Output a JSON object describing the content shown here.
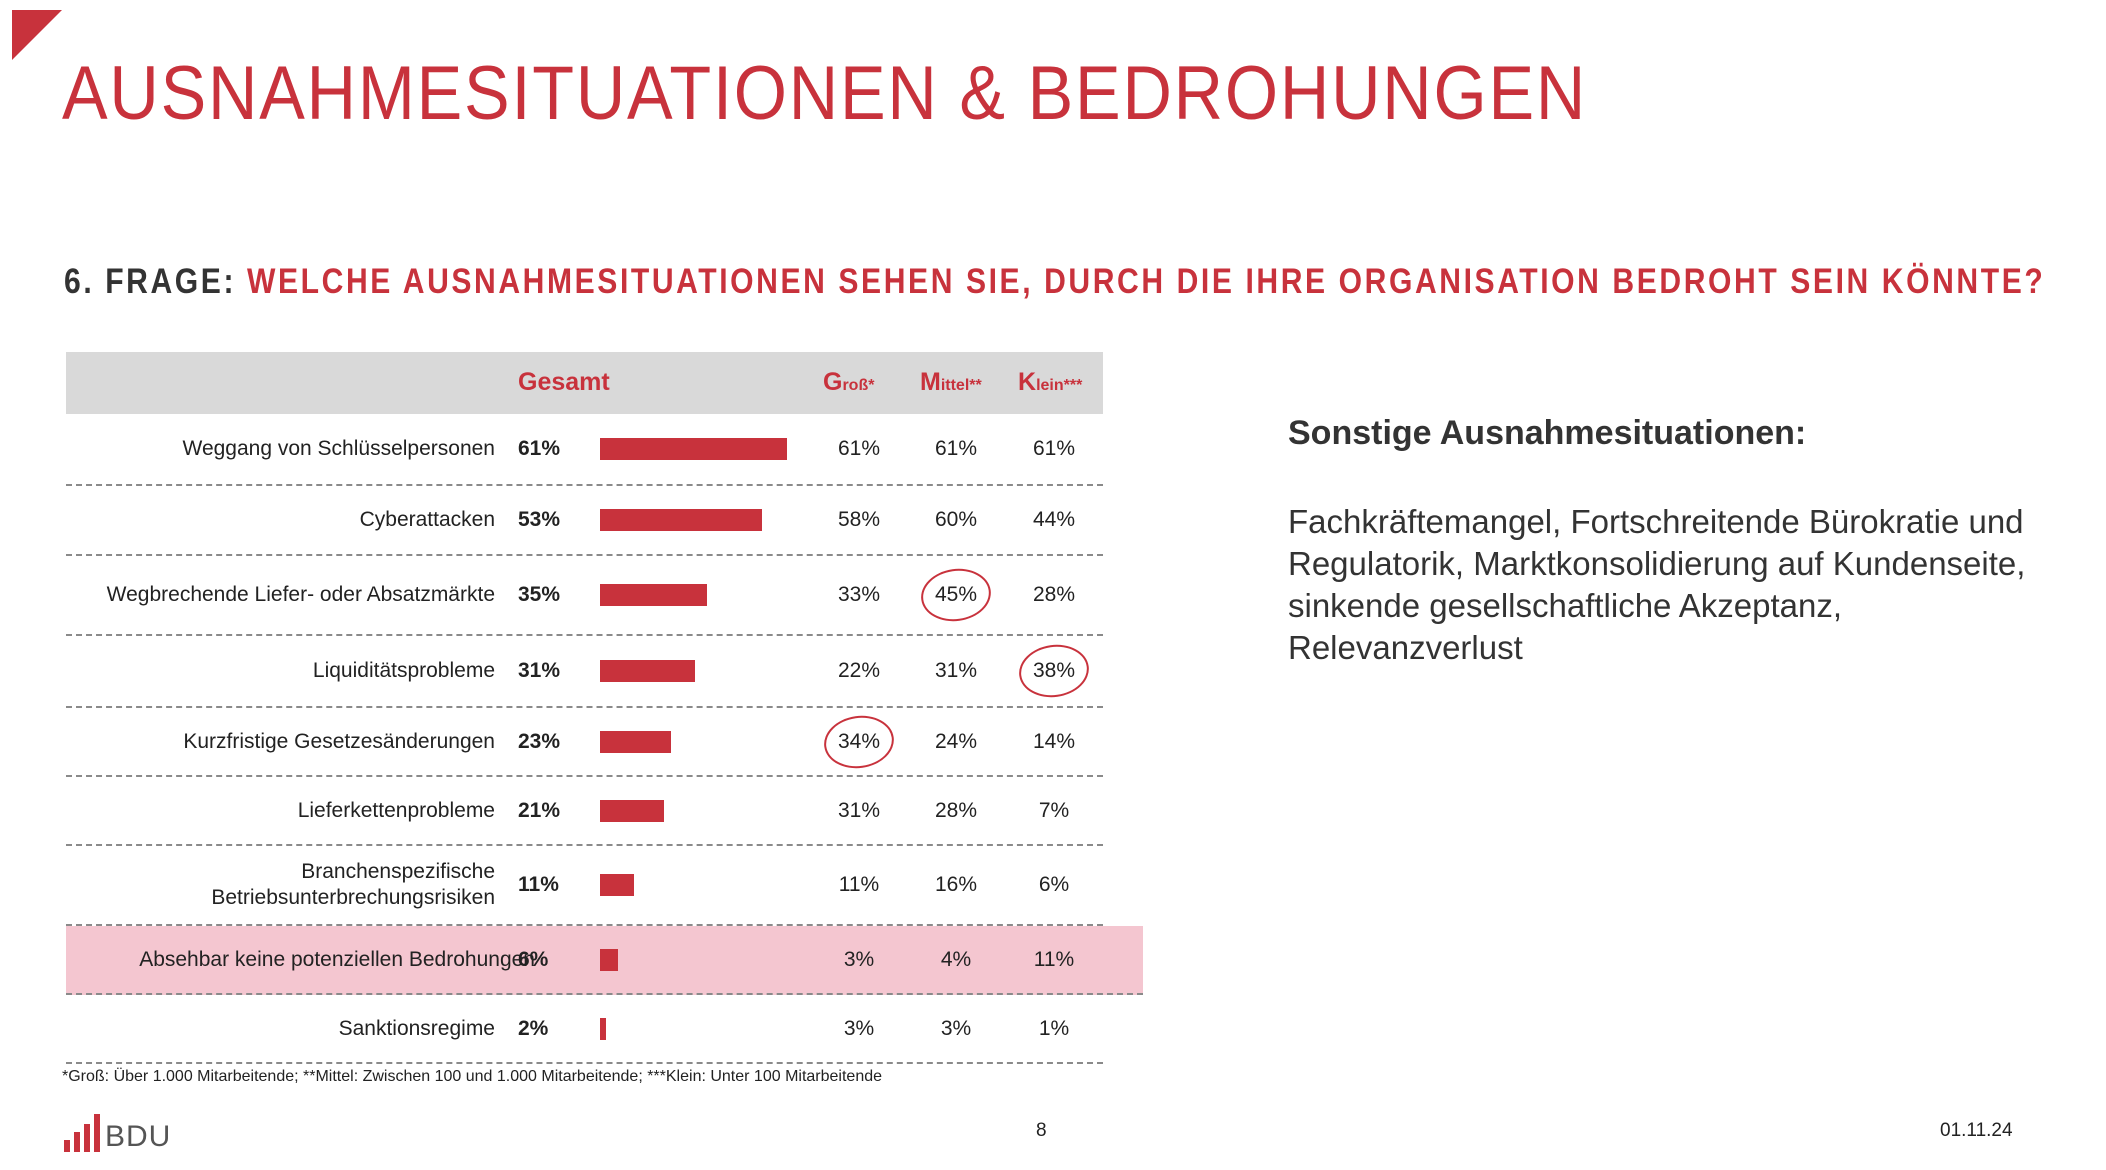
{
  "slide": {
    "title": "AUSNAHMESITUATIONEN & BEDROHUNGEN",
    "question_prefix": "6. FRAGE:",
    "question_text": "WELCHE AUSNAHMESITUATIONEN SEHEN SIE, DURCH DIE IHRE ORGANISATION BEDROHT SEIN KÖNNTE?",
    "page_number": "8",
    "date": "01.11.24",
    "logo_text": "BDU",
    "accent_color": "#c8323c",
    "highlight_color": "#f4c6d0"
  },
  "table": {
    "headers": {
      "total": "Gesamt",
      "gross_initial": "G",
      "gross_rest": "roß*",
      "mittel_initial": "M",
      "mittel_rest": "ittel**",
      "klein_initial": "K",
      "klein_rest": "lein***"
    },
    "rows": [
      {
        "label": "Weggang von Schlüsselpersonen",
        "total": "61%",
        "gross": "61%",
        "mittel": "61%",
        "klein": "61%"
      },
      {
        "label": "Cyberattacken",
        "total": "53%",
        "gross": "58%",
        "mittel": "60%",
        "klein": "44%"
      },
      {
        "label": "Wegbrechende Liefer- oder Absatzmärkte",
        "total": "35%",
        "gross": "33%",
        "mittel": "45%",
        "klein": "28%"
      },
      {
        "label": "Liquiditätsprobleme",
        "total": "31%",
        "gross": "22%",
        "mittel": "31%",
        "klein": "38%"
      },
      {
        "label": "Kurzfristige Gesetzesänderungen",
        "total": "23%",
        "gross": "34%",
        "mittel": "24%",
        "klein": "14%"
      },
      {
        "label": "Lieferkettenprobleme",
        "total": "21%",
        "gross": "31%",
        "mittel": "28%",
        "klein": "7%"
      },
      {
        "label": "Branchenspezifische Betriebsunterbrechungsrisiken",
        "total": "11%",
        "gross": "11%",
        "mittel": "16%",
        "klein": "6%"
      },
      {
        "label": "Absehbar keine potenziellen Bedrohungen",
        "total": "6%",
        "gross": "3%",
        "mittel": "4%",
        "klein": "11%"
      },
      {
        "label": "Sanktionsregime",
        "total": "2%",
        "gross": "3%",
        "mittel": "3%",
        "klein": "1%"
      }
    ],
    "highlighted_row": "Absehbar keine potenziellen Bedrohungen",
    "circled_values": [
      "45%",
      "38%",
      "34%"
    ]
  },
  "chart_data": {
    "type": "bar",
    "categories": [
      "Weggang von Schlüsselpersonen",
      "Cyberattacken",
      "Wegbrechende Liefer- oder Absatzmärkte",
      "Liquiditätsprobleme",
      "Kurzfristige Gesetzesänderungen",
      "Lieferkettenprobleme",
      "Branchenspezifische Betriebsunterbrechungsrisiken",
      "Absehbar keine potenziellen Bedrohungen",
      "Sanktionsregime"
    ],
    "series": [
      {
        "name": "Gesamt",
        "values": [
          61,
          53,
          35,
          31,
          23,
          21,
          11,
          6,
          2
        ]
      }
    ],
    "orientation": "horizontal",
    "bar_color": "#c8323c"
  },
  "footnote": "*Groß: Über 1.000 Mitarbeitende; **Mittel: Zwischen 100 und 1.000 Mitarbeitende; ***Klein: Unter 100 Mitarbeitende",
  "sonstige": {
    "title": "Sonstige Ausnahmesituationen:",
    "body": "Fachkräftemangel, Fortschreitende Bürokratie und Regulatorik, Marktkonsolidierung auf Kundenseite, sinkende gesellschaftliche Akzeptanz, Relevanzverlust"
  }
}
